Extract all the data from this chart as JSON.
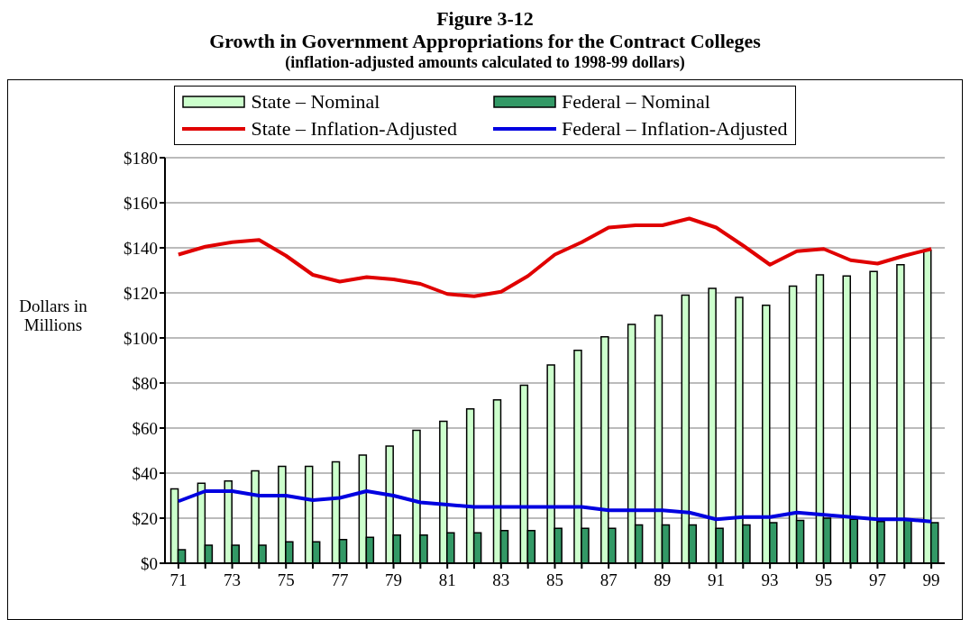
{
  "chart_data": {
    "type": "bar",
    "title": "Figure 3-12\nGrowth in Government Appropriations for the Contract Colleges",
    "subtitle": "(inflation-adjusted amounts calculated to 1998-99 dollars)",
    "ylabel": "Dollars in Millions",
    "categories": [
      "71",
      null,
      "73",
      null,
      "75",
      null,
      "77",
      null,
      "79",
      null,
      "81",
      null,
      "83",
      null,
      "85",
      null,
      "87",
      null,
      "89",
      null,
      "91",
      null,
      "93",
      null,
      "95",
      null,
      "97",
      null,
      "99"
    ],
    "series": [
      {
        "name": "State – Nominal",
        "color": "#ccffcc",
        "values": [
          33,
          35.5,
          36.5,
          41,
          43,
          43,
          45,
          48,
          52,
          59,
          63,
          68.5,
          72.5,
          79,
          88,
          94.5,
          100.5,
          106,
          110,
          119,
          122,
          118,
          114.5,
          123,
          128,
          127.5,
          129.5,
          132.5,
          139
        ]
      },
      {
        "name": "Federal – Nominal",
        "color": "#339966",
        "values": [
          6,
          8,
          8,
          8,
          9.5,
          9.5,
          10.5,
          11.5,
          12.5,
          12.5,
          13.5,
          13.5,
          14.5,
          14.5,
          15.5,
          15.5,
          15.5,
          17,
          17,
          17,
          15.5,
          17,
          18,
          19,
          20,
          19.5,
          18.5,
          19.5,
          18
        ]
      },
      {
        "name": "State – Inflation-Adjusted",
        "type": "line",
        "color": "#e00000",
        "values": [
          137,
          140.5,
          142.5,
          143.5,
          136.5,
          128,
          125,
          127,
          126,
          124,
          119.5,
          118.5,
          120.5,
          127.5,
          137,
          142.5,
          149,
          150,
          150,
          153,
          149,
          141,
          132.5,
          138.5,
          139.5,
          134.5,
          133,
          136.5,
          139.5
        ]
      },
      {
        "name": "Federal – Inflation-Adjusted",
        "type": "line",
        "color": "#0000e0",
        "values": [
          27.5,
          32,
          32,
          30,
          30,
          28,
          29,
          32,
          30,
          27,
          26,
          25,
          25,
          25,
          25,
          25,
          23.5,
          23.5,
          23.5,
          22.5,
          19.5,
          20.5,
          20.5,
          22.5,
          21.5,
          20.5,
          19.5,
          19.5,
          18.5
        ]
      }
    ],
    "ylim": [
      0,
      180
    ],
    "yticks": [
      {
        "value": 0,
        "label": "$0"
      },
      {
        "value": 20,
        "label": "$20"
      },
      {
        "value": 40,
        "label": "$40"
      },
      {
        "value": 60,
        "label": "$60"
      },
      {
        "value": 80,
        "label": "$80"
      },
      {
        "value": 100,
        "label": "$100"
      },
      {
        "value": 120,
        "label": "$120"
      },
      {
        "value": 140,
        "label": "$140"
      },
      {
        "value": 160,
        "label": "$160"
      },
      {
        "value": 180,
        "label": "$180"
      }
    ],
    "grid": "y",
    "legend": "top",
    "line_style": "solid"
  }
}
